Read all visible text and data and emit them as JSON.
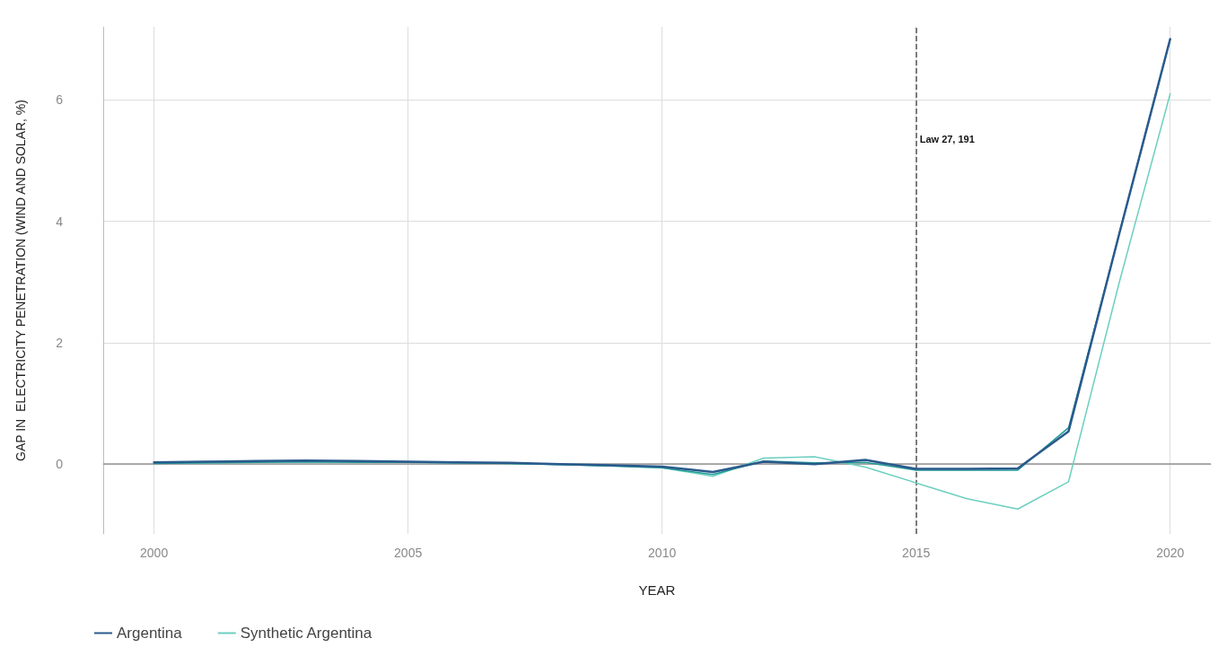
{
  "chart_data": {
    "type": "line",
    "xlabel": "YEAR",
    "ylabel": "GAP IN  ELECTRICITY PENETRATION (WIND AND SOLAR, %)",
    "x": [
      2000,
      2001,
      2002,
      2003,
      2004,
      2005,
      2006,
      2007,
      2008,
      2009,
      2010,
      2011,
      2012,
      2013,
      2014,
      2015,
      2016,
      2017,
      2018,
      2019,
      2020
    ],
    "series": [
      {
        "name": "Argentina",
        "color": "#2a5a8c",
        "values": [
          0.03,
          0.04,
          0.05,
          0.06,
          0.05,
          0.04,
          0.03,
          0.02,
          0.0,
          -0.02,
          -0.04,
          -0.13,
          0.04,
          0.0,
          0.07,
          -0.08,
          -0.08,
          -0.07,
          0.54,
          3.8,
          7.0
        ]
      },
      {
        "color": "#1f9a96",
        "values": [
          0.01,
          0.02,
          0.03,
          0.04,
          0.03,
          0.03,
          0.02,
          0.01,
          -0.01,
          -0.03,
          -0.06,
          -0.17,
          0.05,
          0.02,
          0.03,
          -0.1,
          -0.1,
          -0.1,
          0.6,
          3.8,
          7.0
        ]
      },
      {
        "name": "Synthetic Argentina",
        "color": "#6ccfc0",
        "values": [
          0.02,
          0.02,
          0.03,
          0.03,
          0.03,
          0.03,
          0.02,
          0.01,
          -0.01,
          -0.03,
          -0.06,
          -0.2,
          0.1,
          0.12,
          -0.05,
          -0.31,
          -0.57,
          -0.74,
          -0.29,
          3.0,
          6.1
        ]
      }
    ],
    "xlim": [
      1999,
      2020.8
    ],
    "xticks": [
      2000,
      2005,
      2010,
      2015,
      2020
    ],
    "ylim": [
      -1.15,
      7.2
    ],
    "yticks": [
      0,
      2,
      4,
      6
    ],
    "ref_lines": [
      {
        "axis": "x",
        "value": 2015,
        "label": "Law 27, 191",
        "color": "#555555",
        "line_style": "dashed"
      },
      {
        "axis": "y",
        "value": 0,
        "color": "#999999",
        "line_style": "solid"
      }
    ],
    "grid": true,
    "legend": "bottom left",
    "marker": "none",
    "line_style": "solid"
  }
}
